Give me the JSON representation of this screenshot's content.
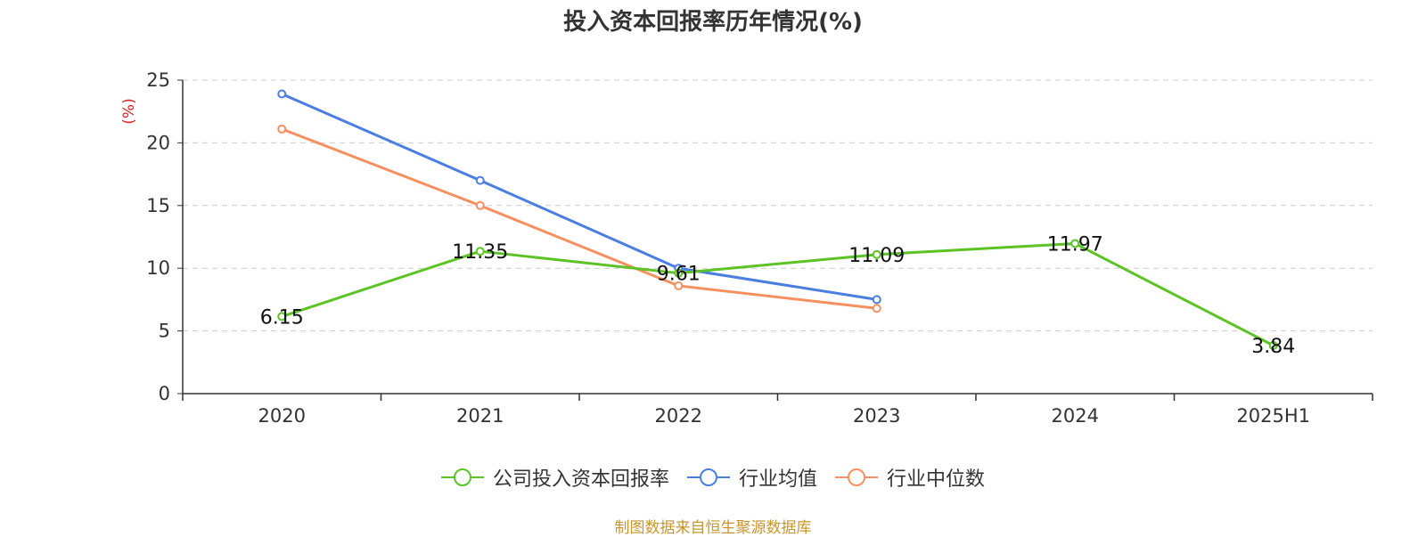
{
  "title": "投入资本回报率历年情况(%)",
  "source": "制图数据来自恒生聚源数据库",
  "colors": {
    "company": "#5cc324",
    "avg": "#4a7ee0",
    "median": "#f79060"
  },
  "chart_data": {
    "type": "line",
    "title": "投入资本回报率历年情况(%)",
    "xlabel": "",
    "ylabel": "(%)",
    "categories": [
      "2020",
      "2021",
      "2022",
      "2023",
      "2024",
      "2025H1"
    ],
    "ylim": [
      0,
      25
    ],
    "yticks": [
      "0",
      "5",
      "10",
      "15",
      "20",
      "25"
    ],
    "grid": true,
    "legend_position": "bottom",
    "series": [
      {
        "name": "公司投入资本回报率",
        "values": [
          6.15,
          11.35,
          9.61,
          11.09,
          11.97,
          3.84
        ],
        "labels": [
          "6.15",
          "11.35",
          "9.61",
          "11.09",
          "11.97",
          "3.84"
        ],
        "color": "#5cc324"
      },
      {
        "name": "行业均值",
        "values": [
          23.9,
          17.0,
          10.0,
          7.5,
          null,
          null
        ],
        "color": "#4a7ee0"
      },
      {
        "name": "行业中位数",
        "values": [
          21.1,
          15.0,
          8.6,
          6.8,
          null,
          null
        ],
        "color": "#f79060"
      }
    ]
  }
}
